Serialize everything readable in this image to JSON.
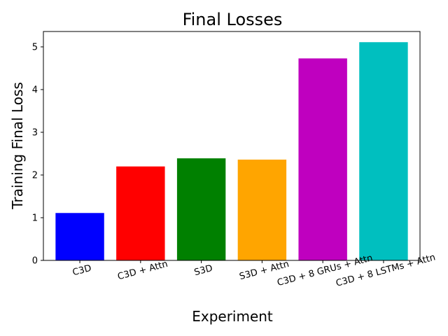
{
  "chart_data": {
    "type": "bar",
    "title": "Final Losses",
    "xlabel": "Experiment",
    "ylabel": "Training Final Loss",
    "categories": [
      "C3D",
      "C3D + Attn",
      "S3D",
      "S3D + Attn",
      "C3D + 8 GRUs + Attn",
      "C3D + 8 LSTMs + Attn"
    ],
    "values": [
      1.11,
      2.2,
      2.39,
      2.36,
      4.73,
      5.11
    ],
    "colors": [
      "#0000ff",
      "#ff0000",
      "#008000",
      "#ffa500",
      "#bf00bf",
      "#00bfbf"
    ],
    "ylim": [
      0,
      5.36
    ],
    "yticks": [
      0,
      1,
      2,
      3,
      4,
      5
    ],
    "grid": false,
    "legend": "none"
  }
}
